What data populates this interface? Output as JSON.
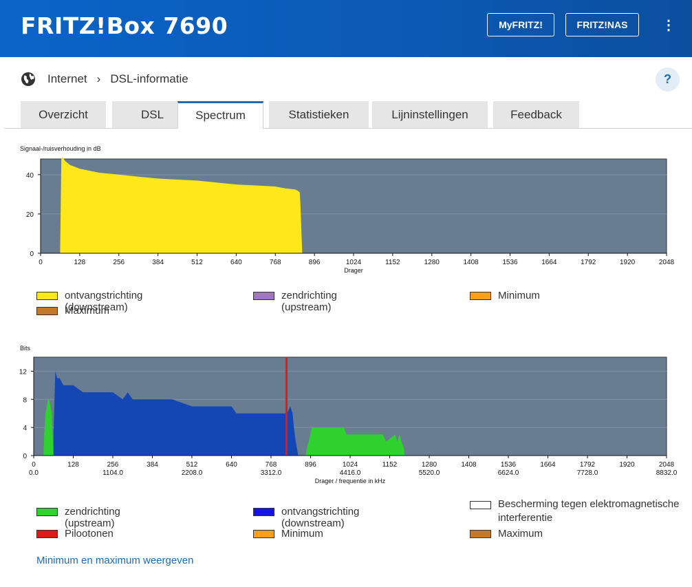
{
  "header": {
    "title": "FRITZ!Box 7690",
    "buttons": [
      "MyFRITZ!",
      "FRITZ!NAS"
    ],
    "menu_glyph": "⋮"
  },
  "breadcrumb": {
    "icon": "globe-icon",
    "items": [
      "Internet",
      "DSL-informatie"
    ],
    "separator": "›"
  },
  "help_label": "?",
  "tabs": [
    {
      "label": "Overzicht",
      "active": false
    },
    {
      "label": "DSL",
      "active": false
    },
    {
      "label": "Spectrum",
      "active": true
    },
    {
      "label": "Statistieken",
      "active": false
    },
    {
      "label": "Lijninstellingen",
      "active": false
    },
    {
      "label": "Feedback",
      "active": false
    }
  ],
  "colors": {
    "plot_bg": "#687d92",
    "downstream_snr": "#ffe81a",
    "upstream_bits": "#2fd12f",
    "downstream_bits": "#1446b4",
    "pilot": "#dd1b1b",
    "accent": "#1a6bb8"
  },
  "chart_data": [
    {
      "type": "area",
      "ylabel": "Signaal-/ruisverhouding in dB",
      "xlabel": "Drager",
      "xlim": [
        0,
        2048
      ],
      "ylim": [
        0,
        48
      ],
      "xticks": [
        0,
        128,
        256,
        384,
        512,
        640,
        768,
        896,
        1024,
        1152,
        1280,
        1408,
        1536,
        1664,
        1792,
        1920,
        2048
      ],
      "yticks": [
        0,
        20,
        40
      ],
      "grid": true,
      "series": [
        {
          "name": "ontvangstrichting (downstream)",
          "color": "#ffe81a",
          "x": [
            64,
            68,
            72,
            80,
            96,
            128,
            160,
            192,
            256,
            320,
            384,
            448,
            512,
            576,
            640,
            704,
            768,
            800,
            832,
            840,
            848,
            850,
            856
          ],
          "y": [
            0,
            48,
            49,
            47,
            45,
            43,
            42,
            41,
            40,
            39,
            38,
            37.5,
            37,
            36,
            35,
            34.5,
            34,
            33,
            32.5,
            32,
            31,
            25,
            0
          ]
        }
      ],
      "legend": [
        {
          "label": "ontvangstrichting (downstream)",
          "color": "#ffe81a"
        },
        {
          "label": "zendrichting (upstream)",
          "color": "#a077c0"
        },
        {
          "label": "Minimum",
          "color": "#ff9f1c"
        },
        {
          "label": "Maximum",
          "color": "#c4782a"
        }
      ]
    },
    {
      "type": "area",
      "ylabel": "Bits",
      "xlabel": "Drager / frequentie in kHz",
      "xlim": [
        0,
        2048
      ],
      "ylim": [
        0,
        14
      ],
      "xticks": [
        0,
        128,
        256,
        384,
        512,
        640,
        768,
        896,
        1024,
        1152,
        1280,
        1408,
        1536,
        1664,
        1792,
        1920,
        2048
      ],
      "freq_ticks": [
        {
          "x": 0,
          "label": "0.0"
        },
        {
          "x": 256,
          "label": "1104.0"
        },
        {
          "x": 512,
          "label": "2208.0"
        },
        {
          "x": 768,
          "label": "3312.0"
        },
        {
          "x": 1024,
          "label": "4416.0"
        },
        {
          "x": 1280,
          "label": "5520.0"
        },
        {
          "x": 1536,
          "label": "6624.0"
        },
        {
          "x": 1792,
          "label": "7728.0"
        },
        {
          "x": 2048,
          "label": "8832.0"
        }
      ],
      "yticks": [
        0,
        4,
        8,
        12
      ],
      "grid": true,
      "series": [
        {
          "name": "zendrichting (upstream)",
          "color": "#2fd12f",
          "x": [
            32,
            34,
            38,
            42,
            46,
            50,
            54,
            58,
            62,
            64
          ],
          "y": [
            0,
            3,
            6,
            7,
            8,
            8,
            7,
            6,
            2,
            0
          ]
        },
        {
          "name": "zendrichting (upstream)",
          "color": "#2fd12f",
          "x": [
            880,
            884,
            890,
            900,
            920,
            1004,
            1012,
            1024,
            1100,
            1130,
            1140,
            1170,
            1176,
            1184,
            1190,
            1198,
            1200
          ],
          "y": [
            0,
            1,
            2,
            4,
            4,
            4,
            3,
            3,
            3,
            3,
            2,
            3,
            2,
            3,
            2,
            1,
            0
          ]
        },
        {
          "name": "ontvangstrichting (downstream)",
          "color": "#1446b4",
          "x": [
            64,
            64,
            70,
            76,
            84,
            96,
            112,
            128,
            160,
            176,
            192,
            256,
            288,
            304,
            320,
            352,
            384,
            448,
            512,
            576,
            640,
            656,
            700,
            768,
            800,
            812,
            820,
            830,
            838,
            842,
            848,
            856
          ],
          "y": [
            0,
            3,
            12,
            11,
            11,
            10,
            10,
            10,
            9,
            9,
            9,
            9,
            8,
            9,
            8,
            8,
            8,
            8,
            7,
            7,
            7,
            6,
            6,
            6,
            6,
            6,
            6,
            7,
            6,
            4,
            2,
            0
          ]
        }
      ],
      "pilot_tones": [
        {
          "x": 818,
          "color": "#dd1b1b"
        }
      ],
      "legend": [
        {
          "label": "zendrichting (upstream)",
          "color": "#2fd12f"
        },
        {
          "label": "ontvangstrichting (downstream)",
          "color": "#1446b4"
        },
        {
          "label": "Bescherming tegen elektromagnetische interferentie",
          "color": "#ffffff"
        },
        {
          "label": "Pilootonen",
          "color": "#dd1b1b"
        },
        {
          "label": "Minimum",
          "color": "#ff9f1c"
        },
        {
          "label": "Maximum",
          "color": "#c4782a"
        }
      ]
    }
  ],
  "footer_link": "Minimum en maximum weergeven"
}
